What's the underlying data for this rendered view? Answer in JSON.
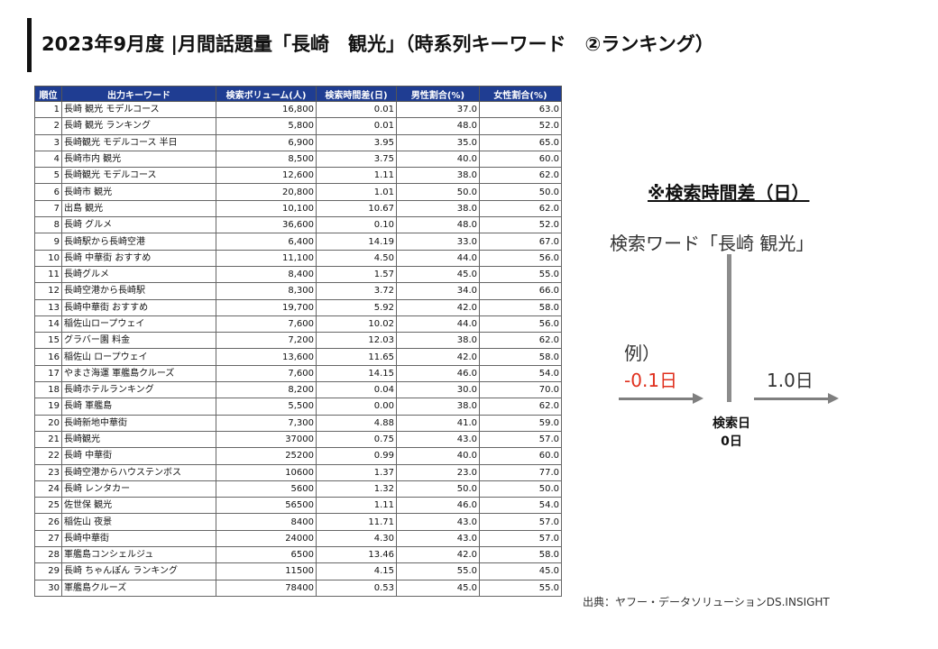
{
  "title": "2023年9月度 |月間話題量「長崎　観光」（時系列キーワード　②ランキング）",
  "table": {
    "headers": [
      "順位",
      "出力キーワード",
      "検索ボリューム(人)",
      "検索時間差(日)",
      "男性割合(%)",
      "女性割合(%)"
    ],
    "rows": [
      [
        "1",
        "長崎 観光 モデルコース",
        "16,800",
        "0.01",
        "37.0",
        "63.0"
      ],
      [
        "2",
        "長崎 観光 ランキング",
        "5,800",
        "0.01",
        "48.0",
        "52.0"
      ],
      [
        "3",
        "長崎観光 モデルコース 半日",
        "6,900",
        "3.95",
        "35.0",
        "65.0"
      ],
      [
        "4",
        "長崎市内 観光",
        "8,500",
        "3.75",
        "40.0",
        "60.0"
      ],
      [
        "5",
        "長崎観光 モデルコース",
        "12,600",
        "1.11",
        "38.0",
        "62.0"
      ],
      [
        "6",
        "長崎市 観光",
        "20,800",
        "1.01",
        "50.0",
        "50.0"
      ],
      [
        "7",
        "出島 観光",
        "10,100",
        "10.67",
        "38.0",
        "62.0"
      ],
      [
        "8",
        "長崎 グルメ",
        "36,600",
        "0.10",
        "48.0",
        "52.0"
      ],
      [
        "9",
        "長崎駅から長崎空港",
        "6,400",
        "14.19",
        "33.0",
        "67.0"
      ],
      [
        "10",
        "長崎 中華街 おすすめ",
        "11,100",
        "4.50",
        "44.0",
        "56.0"
      ],
      [
        "11",
        "長崎グルメ",
        "8,400",
        "1.57",
        "45.0",
        "55.0"
      ],
      [
        "12",
        "長崎空港から長崎駅",
        "8,300",
        "3.72",
        "34.0",
        "66.0"
      ],
      [
        "13",
        "長崎中華街 おすすめ",
        "19,700",
        "5.92",
        "42.0",
        "58.0"
      ],
      [
        "14",
        "稲佐山ロープウェイ",
        "7,600",
        "10.02",
        "44.0",
        "56.0"
      ],
      [
        "15",
        "グラバー園 料金",
        "7,200",
        "12.03",
        "38.0",
        "62.0"
      ],
      [
        "16",
        "稲佐山 ロープウェイ",
        "13,600",
        "11.65",
        "42.0",
        "58.0"
      ],
      [
        "17",
        "やまさ海運 軍艦島クルーズ",
        "7,600",
        "14.15",
        "46.0",
        "54.0"
      ],
      [
        "18",
        "長崎ホテルランキング",
        "8,200",
        "0.04",
        "30.0",
        "70.0"
      ],
      [
        "19",
        "長崎 軍艦島",
        "5,500",
        "0.00",
        "38.0",
        "62.0"
      ],
      [
        "20",
        "長崎新地中華街",
        "7,300",
        "4.88",
        "41.0",
        "59.0"
      ],
      [
        "21",
        "長崎観光",
        "37000",
        "0.75",
        "43.0",
        "57.0"
      ],
      [
        "22",
        "長崎 中華街",
        "25200",
        "0.99",
        "40.0",
        "60.0"
      ],
      [
        "23",
        "長崎空港からハウステンボス",
        "10600",
        "1.37",
        "23.0",
        "77.0"
      ],
      [
        "24",
        "長崎 レンタカー",
        "5600",
        "1.32",
        "50.0",
        "50.0"
      ],
      [
        "25",
        "佐世保 観光",
        "56500",
        "1.11",
        "46.0",
        "54.0"
      ],
      [
        "26",
        "稲佐山 夜景",
        "8400",
        "11.71",
        "43.0",
        "57.0"
      ],
      [
        "27",
        "長崎中華街",
        "24000",
        "4.30",
        "43.0",
        "57.0"
      ],
      [
        "28",
        "軍艦島コンシェルジュ",
        "6500",
        "13.46",
        "42.0",
        "58.0"
      ],
      [
        "29",
        "長崎 ちゃんぽん ランキング",
        "11500",
        "4.15",
        "55.0",
        "45.0"
      ],
      [
        "30",
        "軍艦島クルーズ",
        "78400",
        "0.53",
        "45.0",
        "55.0"
      ]
    ]
  },
  "note": {
    "title": "※検索時間差（日）",
    "search_word": "検索ワード「長崎 観光」",
    "example_label": "例）",
    "example_negative": "-0.1日",
    "example_positive": "1.0日",
    "search_day_line1": "検索日",
    "search_day_line2": "0日"
  },
  "source": "出典：ヤフー・データソリューションDS.INSIGHT",
  "colors": {
    "header_bg": "#1f3d92",
    "negative": "#e0301e",
    "arrow": "#7f7f7f"
  }
}
